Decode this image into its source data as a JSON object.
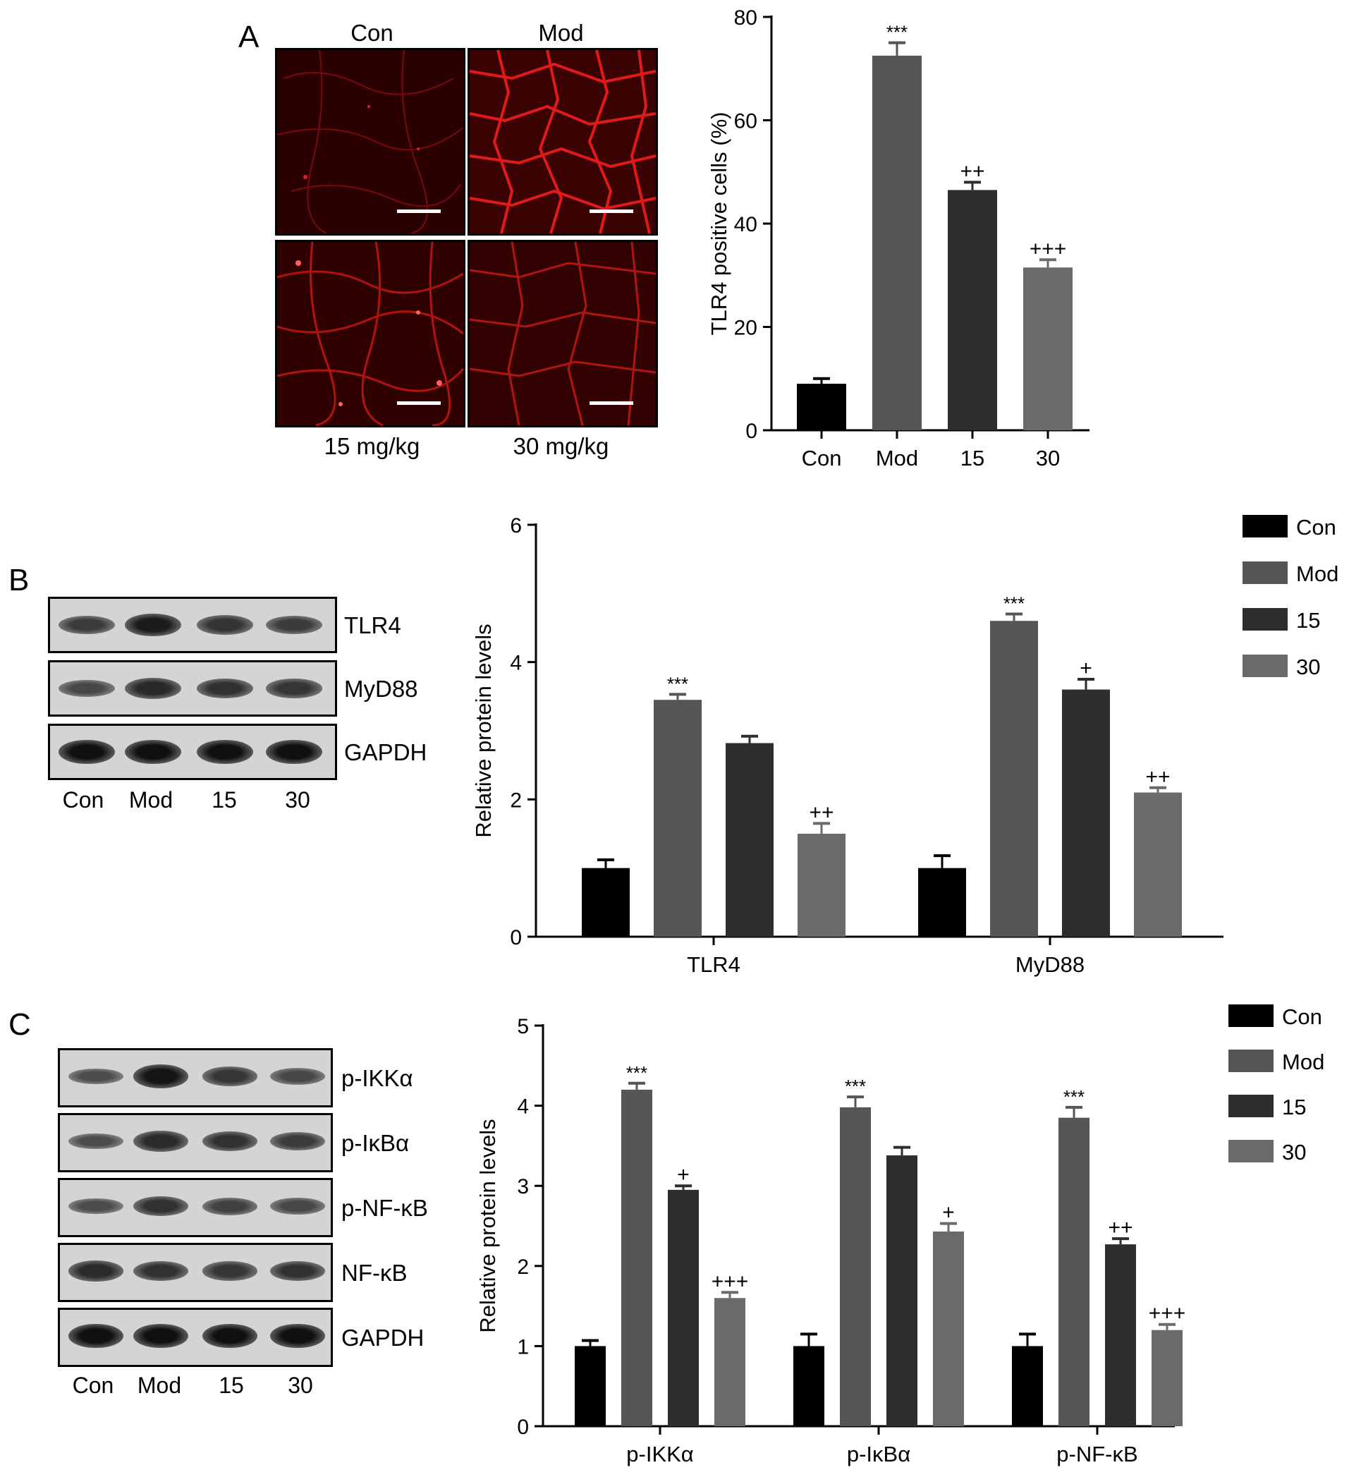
{
  "panel_letters": {
    "a": "A",
    "b": "B",
    "c": "C"
  },
  "colors": {
    "Con": "#000000",
    "Mod": "#555555",
    "15": "#2e2e2e",
    "30": "#6a6a6a",
    "micro_bg": "#2a0000",
    "micro_fiber": "#d01515"
  },
  "micrographs": {
    "top_labels": [
      "Con",
      "Mod"
    ],
    "bottom_labels": [
      "15 mg/kg",
      "30 mg/kg"
    ]
  },
  "blot_b": {
    "rows": [
      "TLR4",
      "MyD88",
      "GAPDH"
    ],
    "lanes": [
      "Con",
      "Mod",
      "15",
      "30"
    ],
    "intensity": [
      [
        0.55,
        0.85,
        0.62,
        0.55
      ],
      [
        0.45,
        0.72,
        0.65,
        0.6
      ],
      [
        0.95,
        0.95,
        0.95,
        0.95
      ]
    ]
  },
  "blot_c": {
    "rows": [
      "p-IKKα",
      "p-IκBα",
      "p-NF-κB",
      "NF-κB",
      "GAPDH"
    ],
    "lanes": [
      "Con",
      "Mod",
      "15",
      "30"
    ],
    "intensity": [
      [
        0.4,
        0.9,
        0.6,
        0.45
      ],
      [
        0.4,
        0.7,
        0.65,
        0.55
      ],
      [
        0.4,
        0.65,
        0.5,
        0.45
      ],
      [
        0.7,
        0.65,
        0.6,
        0.65
      ],
      [
        0.95,
        0.95,
        0.95,
        0.95
      ]
    ]
  },
  "chart_data": [
    {
      "type": "bar",
      "categories": [
        "Con",
        "Mod",
        "15",
        "30"
      ],
      "values": [
        9,
        72.5,
        46.5,
        31.5
      ],
      "errors": [
        1,
        2.5,
        1.5,
        1.5
      ],
      "annotations": [
        "",
        "***",
        "++",
        "+++"
      ],
      "ylabel": "TLR4 positive cells (%)",
      "ylim": [
        0,
        80
      ],
      "yticks": [
        "0",
        "20",
        "40",
        "60",
        "80"
      ],
      "legend": false
    },
    {
      "type": "bar",
      "categories": [
        "TLR4",
        "MyD88"
      ],
      "series": [
        {
          "name": "Con",
          "values": [
            1.0,
            1.0
          ],
          "errors": [
            0.12,
            0.18
          ],
          "annotations": [
            "",
            ""
          ]
        },
        {
          "name": "Mod",
          "values": [
            3.45,
            4.6
          ],
          "errors": [
            0.08,
            0.1
          ],
          "annotations": [
            "***",
            "***"
          ]
        },
        {
          "name": "15",
          "values": [
            2.82,
            3.6
          ],
          "errors": [
            0.1,
            0.15
          ],
          "annotations": [
            "",
            "+"
          ]
        },
        {
          "name": "30",
          "values": [
            1.5,
            2.1
          ],
          "errors": [
            0.15,
            0.07
          ],
          "annotations": [
            "++",
            "++"
          ]
        }
      ],
      "ylabel": "Relative protein levels",
      "ylim": [
        0,
        6
      ],
      "yticks": [
        "0",
        "2",
        "4",
        "6"
      ],
      "legend": "top-right"
    },
    {
      "type": "bar",
      "categories": [
        "p-IKKα",
        "p-IκBα",
        "p-NF-κB"
      ],
      "series": [
        {
          "name": "Con",
          "values": [
            1.0,
            1.0,
            1.0
          ],
          "errors": [
            0.07,
            0.15,
            0.15
          ],
          "annotations": [
            "",
            "",
            ""
          ]
        },
        {
          "name": "Mod",
          "values": [
            4.2,
            3.98,
            3.85
          ],
          "errors": [
            0.08,
            0.13,
            0.13
          ],
          "annotations": [
            "***",
            "***",
            "***"
          ]
        },
        {
          "name": "15",
          "values": [
            2.95,
            3.38,
            2.27
          ],
          "errors": [
            0.05,
            0.1,
            0.07
          ],
          "annotations": [
            "+",
            "",
            "++"
          ]
        },
        {
          "name": "30",
          "values": [
            1.6,
            2.43,
            1.2
          ],
          "errors": [
            0.07,
            0.1,
            0.07
          ],
          "annotations": [
            "+++",
            "+",
            "+++"
          ]
        }
      ],
      "ylabel": "Relative protein levels",
      "ylim": [
        0,
        5
      ],
      "yticks": [
        "0",
        "1",
        "2",
        "3",
        "4",
        "5"
      ],
      "legend": "top-right"
    }
  ]
}
